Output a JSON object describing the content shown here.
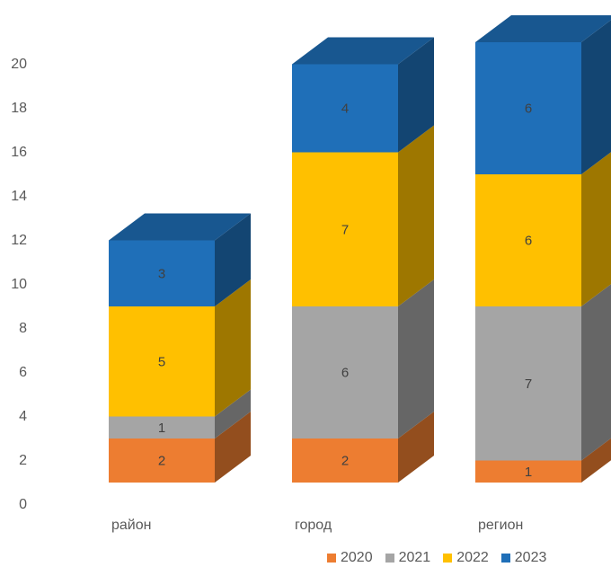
{
  "chart_data": {
    "type": "bar",
    "stacked": true,
    "style": "3d-column",
    "categories": [
      "район",
      "город",
      "регион"
    ],
    "series": [
      {
        "name": "2020",
        "values": [
          2,
          2,
          1
        ],
        "color": "#ED7D31"
      },
      {
        "name": "2021",
        "values": [
          1,
          6,
          7
        ],
        "color": "#A5A5A5"
      },
      {
        "name": "2022",
        "values": [
          5,
          7,
          6
        ],
        "color": "#FFC000"
      },
      {
        "name": "2023",
        "values": [
          3,
          4,
          6
        ],
        "color": "#1F6FB8"
      }
    ],
    "y_ticks": [
      "0",
      "2",
      "4",
      "6",
      "8",
      "10",
      "12",
      "14",
      "16",
      "18",
      "20"
    ],
    "ylim": [
      0,
      22
    ],
    "grid": false,
    "legend_position": "bottom"
  }
}
